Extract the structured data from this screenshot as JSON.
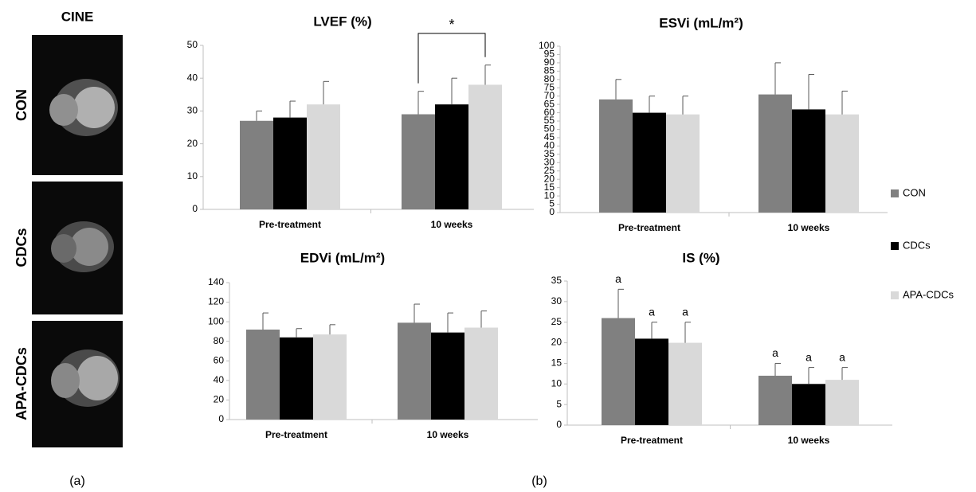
{
  "panel_a": {
    "title": "CINE",
    "rows": [
      "CON",
      "CDCs",
      "APA-CDCs"
    ],
    "caption": "(a)"
  },
  "panel_b": {
    "caption": "(b)"
  },
  "legend": [
    {
      "name": "CON",
      "color": "#808080"
    },
    {
      "name": "CDCs",
      "color": "#000000"
    },
    {
      "name": "APA-CDCs",
      "color": "#d9d9d9"
    }
  ],
  "chart_data": [
    {
      "type": "bar",
      "title": "LVEF (%)",
      "categories": [
        "Pre-treatment",
        "10 weeks"
      ],
      "series": [
        {
          "color": "#808080",
          "values": [
            27,
            29
          ],
          "errors": [
            3,
            7
          ]
        },
        {
          "color": "#000000",
          "values": [
            28,
            32
          ],
          "errors": [
            5,
            8
          ]
        },
        {
          "color": "#d9d9d9",
          "values": [
            32,
            38
          ],
          "errors": [
            7,
            6
          ]
        }
      ],
      "ylim": [
        0,
        50
      ],
      "yticks": [
        0,
        10,
        20,
        30,
        40,
        50
      ],
      "annotation": "*"
    },
    {
      "type": "bar",
      "title": "ESVi (mL/m²)",
      "categories": [
        "Pre-treatment",
        "10 weeks"
      ],
      "series": [
        {
          "color": "#808080",
          "values": [
            68,
            71
          ],
          "errors": [
            12,
            19
          ]
        },
        {
          "color": "#000000",
          "values": [
            60,
            62
          ],
          "errors": [
            10,
            21
          ]
        },
        {
          "color": "#d9d9d9",
          "values": [
            59,
            59
          ],
          "errors": [
            11,
            14
          ]
        }
      ],
      "ylim": [
        0,
        100
      ],
      "yticks": [
        0,
        5,
        10,
        15,
        20,
        25,
        30,
        35,
        40,
        45,
        50,
        55,
        60,
        65,
        70,
        75,
        80,
        85,
        90,
        95,
        100
      ]
    },
    {
      "type": "bar",
      "title": "EDVi (mL/m²)",
      "categories": [
        "Pre-treatment",
        "10 weeks"
      ],
      "series": [
        {
          "color": "#808080",
          "values": [
            92,
            99
          ],
          "errors": [
            17,
            19
          ]
        },
        {
          "color": "#000000",
          "values": [
            84,
            89
          ],
          "errors": [
            9,
            20
          ]
        },
        {
          "color": "#d9d9d9",
          "values": [
            87,
            94
          ],
          "errors": [
            10,
            17
          ]
        }
      ],
      "ylim": [
        0,
        140
      ],
      "yticks": [
        0,
        20,
        40,
        60,
        80,
        100,
        120,
        140
      ]
    },
    {
      "type": "bar",
      "title": "IS (%)",
      "categories": [
        "Pre-treatment",
        "10 weeks"
      ],
      "series": [
        {
          "color": "#808080",
          "values": [
            26,
            12
          ],
          "errors": [
            7,
            3
          ],
          "letters": [
            "a",
            "a"
          ]
        },
        {
          "color": "#000000",
          "values": [
            21,
            10
          ],
          "errors": [
            4,
            4
          ],
          "letters": [
            "a",
            "a"
          ]
        },
        {
          "color": "#d9d9d9",
          "values": [
            20,
            11
          ],
          "errors": [
            5,
            3
          ],
          "letters": [
            "a",
            "a"
          ]
        }
      ],
      "ylim": [
        0,
        35
      ],
      "yticks": [
        0,
        5,
        10,
        15,
        20,
        25,
        30,
        35
      ]
    }
  ]
}
